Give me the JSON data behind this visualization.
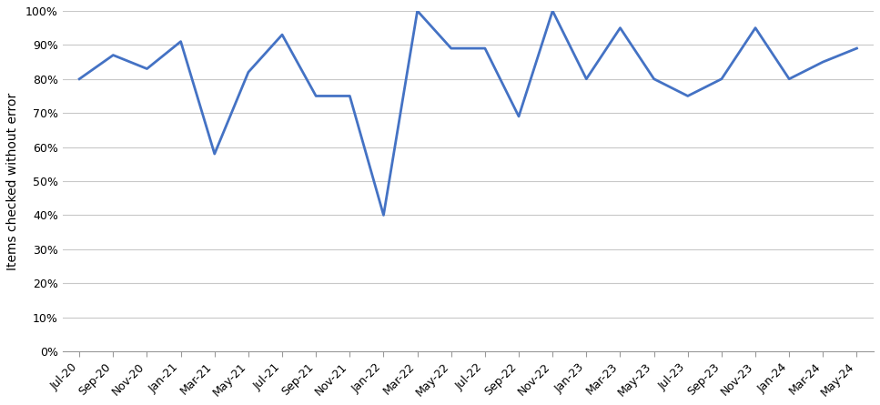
{
  "x_labels": [
    "Jul-20",
    "Sep-20",
    "Nov-20",
    "Jan-21",
    "Mar-21",
    "May-21",
    "Jul-21",
    "Sep-21",
    "Nov-21",
    "Jan-22",
    "Mar-22",
    "May-22",
    "Jul-22",
    "Sep-22",
    "Nov-22",
    "Jan-23",
    "Mar-23",
    "May-23",
    "Jul-23",
    "Sep-23",
    "Nov-23",
    "Jan-24",
    "Mar-24",
    "May-24"
  ],
  "values": [
    80,
    87,
    83,
    91,
    58,
    82,
    93,
    75,
    75,
    40,
    100,
    89,
    89,
    69,
    100,
    80,
    95,
    80,
    75,
    80,
    95,
    80,
    85,
    89
  ],
  "line_color": "#4472C4",
  "line_width": 2.0,
  "ylabel": "Items checked without error",
  "ylim": [
    0,
    100
  ],
  "yticks": [
    0,
    10,
    20,
    30,
    40,
    50,
    60,
    70,
    80,
    90,
    100
  ],
  "background_color": "#ffffff",
  "grid_color": "#c8c8c8",
  "tick_fontsize": 9,
  "ylabel_fontsize": 10
}
